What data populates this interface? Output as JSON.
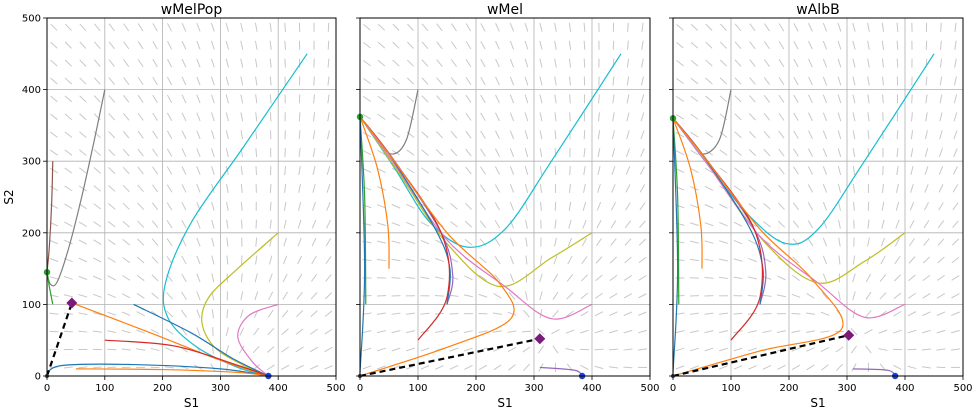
{
  "colors": {
    "blue": "#1f77b4",
    "orange": "#ff7f0e",
    "green": "#2ca02c",
    "red": "#d62728",
    "purple": "#9467bd",
    "brown": "#8c564b",
    "pink": "#e377c2",
    "gray": "#7f7f7f",
    "olive": "#bcbd22",
    "cyan": "#17becf",
    "marker_green": "#2ca02c",
    "marker_blue": "#1f3fd0",
    "marker_saddle": "#7b1a7b"
  },
  "chart_data": [
    {
      "type": "line",
      "title": "wMelPop",
      "xlabel": "S1",
      "ylabel": "S2",
      "xlim": [
        0,
        500
      ],
      "ylim": [
        0,
        500
      ],
      "xticks": [
        "0",
        "100",
        "200",
        "300",
        "400",
        "500"
      ],
      "yticks": [
        "0",
        "100",
        "200",
        "300",
        "400",
        "500"
      ],
      "grid": true,
      "equilibria": {
        "s2_only": [
          0,
          145
        ],
        "s1_only": [
          383,
          0
        ],
        "saddle": [
          43,
          102
        ],
        "origin": [
          0,
          0
        ]
      },
      "separatrix": [
        [
          0,
          0
        ],
        [
          43,
          102
        ]
      ],
      "series": [
        {
          "color": "gray",
          "points": [
            [
              100,
              400
            ],
            [
              82,
              330
            ],
            [
              60,
              250
            ],
            [
              38,
              180
            ],
            [
              18,
              132
            ],
            [
              6,
              128
            ],
            [
              0,
              145
            ]
          ]
        },
        {
          "color": "brown",
          "points": [
            [
              10,
              300
            ],
            [
              8,
              240
            ],
            [
              4,
              180
            ],
            [
              0,
              145
            ]
          ]
        },
        {
          "color": "green",
          "points": [
            [
              10,
              100
            ],
            [
              4,
              125
            ],
            [
              0,
              145
            ]
          ]
        },
        {
          "color": "cyan",
          "points": [
            [
              450,
              450
            ],
            [
              340,
              320
            ],
            [
              250,
              215
            ],
            [
              205,
              130
            ],
            [
              210,
              80
            ],
            [
              260,
              40
            ],
            [
              330,
              12
            ],
            [
              383,
              0
            ]
          ]
        },
        {
          "color": "olive",
          "points": [
            [
              400,
              200
            ],
            [
              330,
              150
            ],
            [
              280,
              110
            ],
            [
              268,
              75
            ],
            [
              290,
              40
            ],
            [
              340,
              15
            ],
            [
              383,
              0
            ]
          ]
        },
        {
          "color": "pink",
          "points": [
            [
              400,
              100
            ],
            [
              350,
              85
            ],
            [
              330,
              55
            ],
            [
              355,
              20
            ],
            [
              383,
              0
            ]
          ]
        },
        {
          "color": "blue",
          "points": [
            [
              150,
              100
            ],
            [
              250,
              60
            ],
            [
              320,
              25
            ],
            [
              383,
              0
            ]
          ]
        },
        {
          "color": "orange",
          "points": [
            [
              50,
              100
            ],
            [
              180,
              60
            ],
            [
              300,
              22
            ],
            [
              383,
              0
            ]
          ]
        },
        {
          "color": "red",
          "points": [
            [
              100,
              50
            ],
            [
              220,
              42
            ],
            [
              330,
              15
            ],
            [
              383,
              0
            ]
          ]
        },
        {
          "color": "blue",
          "points": [
            [
              0,
              5
            ],
            [
              30,
              15
            ],
            [
              150,
              16
            ],
            [
              300,
              10
            ],
            [
              383,
              0
            ]
          ]
        },
        {
          "color": "orange",
          "points": [
            [
              50,
              10
            ],
            [
              200,
              9
            ],
            [
              330,
              5
            ],
            [
              383,
              0
            ]
          ]
        }
      ]
    },
    {
      "type": "line",
      "title": "wMel",
      "xlabel": "S1",
      "ylabel": "",
      "xlim": [
        0,
        500
      ],
      "ylim": [
        0,
        500
      ],
      "xticks": [
        "0",
        "100",
        "200",
        "300",
        "400",
        "500"
      ],
      "yticks": [],
      "grid": true,
      "equilibria": {
        "s2_only": [
          0,
          362
        ],
        "s1_only": [
          383,
          0
        ],
        "saddle": [
          310,
          52
        ],
        "origin": [
          0,
          0
        ]
      },
      "separatrix": [
        [
          0,
          0
        ],
        [
          310,
          52
        ]
      ],
      "series": [
        {
          "color": "gray",
          "points": [
            [
              100,
              400
            ],
            [
              80,
              330
            ],
            [
              55,
              310
            ],
            [
              30,
              330
            ],
            [
              0,
              362
            ]
          ]
        },
        {
          "color": "cyan",
          "points": [
            [
              450,
              450
            ],
            [
              330,
              300
            ],
            [
              250,
              205
            ],
            [
              185,
              180
            ],
            [
              120,
              215
            ],
            [
              60,
              290
            ],
            [
              0,
              362
            ]
          ]
        },
        {
          "color": "olive",
          "points": [
            [
              400,
              200
            ],
            [
              330,
              165
            ],
            [
              240,
              125
            ],
            [
              150,
              185
            ],
            [
              70,
              280
            ],
            [
              0,
              362
            ]
          ]
        },
        {
          "color": "pink",
          "points": [
            [
              400,
              100
            ],
            [
              330,
              80
            ],
            [
              250,
              125
            ],
            [
              150,
              190
            ],
            [
              60,
              295
            ],
            [
              0,
              362
            ]
          ]
        },
        {
          "color": "purple",
          "points": [
            [
              150,
              100
            ],
            [
              160,
              140
            ],
            [
              140,
              200
            ],
            [
              60,
              300
            ],
            [
              0,
              362
            ]
          ]
        },
        {
          "color": "blue",
          "points": [
            [
              150,
              100
            ],
            [
              155,
              150
            ],
            [
              130,
              205
            ],
            [
              50,
              310
            ],
            [
              0,
              362
            ]
          ]
        },
        {
          "color": "red",
          "points": [
            [
              100,
              50
            ],
            [
              150,
              110
            ],
            [
              140,
              200
            ],
            [
              50,
              310
            ],
            [
              0,
              362
            ]
          ]
        },
        {
          "color": "orange",
          "points": [
            [
              50,
              150
            ],
            [
              48,
              210
            ],
            [
              30,
              290
            ],
            [
              0,
              362
            ]
          ]
        },
        {
          "color": "orange",
          "points": [
            [
              0,
              0
            ],
            [
              150,
              40
            ],
            [
              260,
              80
            ],
            [
              240,
              130
            ],
            [
              150,
              200
            ],
            [
              50,
              310
            ],
            [
              0,
              362
            ]
          ]
        },
        {
          "color": "green",
          "points": [
            [
              10,
              100
            ],
            [
              8,
              250
            ],
            [
              0,
              362
            ]
          ]
        },
        {
          "color": "blue",
          "points": [
            [
              0,
              5
            ],
            [
              8,
              150
            ],
            [
              0,
              362
            ]
          ]
        },
        {
          "color": "purple",
          "points": [
            [
              310,
              12
            ],
            [
              370,
              8
            ],
            [
              383,
              0
            ]
          ]
        }
      ]
    },
    {
      "type": "line",
      "title": "wAlbB",
      "xlabel": "S1",
      "ylabel": "",
      "xlim": [
        0,
        500
      ],
      "ylim": [
        0,
        500
      ],
      "xticks": [
        "0",
        "100",
        "200",
        "300",
        "400",
        "500"
      ],
      "yticks": [],
      "grid": true,
      "equilibria": {
        "s2_only": [
          0,
          360
        ],
        "s1_only": [
          383,
          0
        ],
        "saddle": [
          303,
          57
        ],
        "origin": [
          0,
          0
        ]
      },
      "separatrix": [
        [
          0,
          0
        ],
        [
          303,
          57
        ]
      ],
      "series": [
        {
          "color": "gray",
          "points": [
            [
              100,
              400
            ],
            [
              80,
              330
            ],
            [
              50,
              310
            ],
            [
              25,
              335
            ],
            [
              0,
              360
            ]
          ]
        },
        {
          "color": "cyan",
          "points": [
            [
              450,
              450
            ],
            [
              330,
              300
            ],
            [
              250,
              205
            ],
            [
              195,
              185
            ],
            [
              130,
              225
            ],
            [
              60,
              295
            ],
            [
              0,
              360
            ]
          ]
        },
        {
          "color": "olive",
          "points": [
            [
              400,
              200
            ],
            [
              330,
              160
            ],
            [
              250,
              130
            ],
            [
              160,
              185
            ],
            [
              70,
              285
            ],
            [
              0,
              360
            ]
          ]
        },
        {
          "color": "pink",
          "points": [
            [
              400,
              100
            ],
            [
              330,
              82
            ],
            [
              250,
              130
            ],
            [
              150,
              195
            ],
            [
              60,
              295
            ],
            [
              0,
              360
            ]
          ]
        },
        {
          "color": "purple",
          "points": [
            [
              150,
              100
            ],
            [
              160,
              145
            ],
            [
              140,
              205
            ],
            [
              60,
              300
            ],
            [
              0,
              360
            ]
          ]
        },
        {
          "color": "blue",
          "points": [
            [
              150,
              100
            ],
            [
              155,
              150
            ],
            [
              130,
              210
            ],
            [
              50,
              310
            ],
            [
              0,
              360
            ]
          ]
        },
        {
          "color": "red",
          "points": [
            [
              100,
              50
            ],
            [
              150,
              110
            ],
            [
              140,
              205
            ],
            [
              50,
              310
            ],
            [
              0,
              360
            ]
          ]
        },
        {
          "color": "orange",
          "points": [
            [
              50,
              150
            ],
            [
              48,
              210
            ],
            [
              30,
              290
            ],
            [
              0,
              360
            ]
          ]
        },
        {
          "color": "orange",
          "points": [
            [
              0,
              0
            ],
            [
              150,
              35
            ],
            [
              290,
              65
            ],
            [
              240,
              135
            ],
            [
              150,
              205
            ],
            [
              50,
              310
            ],
            [
              0,
              360
            ]
          ]
        },
        {
          "color": "green",
          "points": [
            [
              10,
              100
            ],
            [
              8,
              250
            ],
            [
              0,
              360
            ]
          ]
        },
        {
          "color": "blue",
          "points": [
            [
              0,
              5
            ],
            [
              8,
              150
            ],
            [
              0,
              360
            ]
          ]
        },
        {
          "color": "purple",
          "points": [
            [
              310,
              10
            ],
            [
              370,
              8
            ],
            [
              383,
              0
            ]
          ]
        }
      ]
    }
  ]
}
